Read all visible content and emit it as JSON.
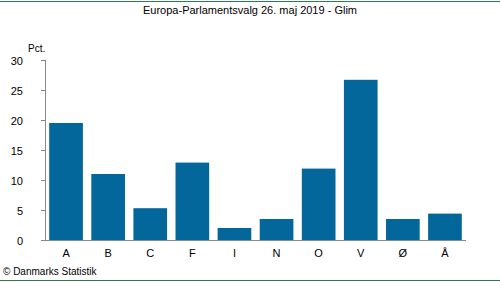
{
  "chart_data": {
    "type": "bar",
    "title": "Europa-Parlamentsvalg 26. maj 2019 - Glim",
    "y_label": "Pct.",
    "source": "© Danmarks Statistik",
    "categories": [
      "A",
      "B",
      "C",
      "F",
      "I",
      "N",
      "O",
      "V",
      "Ø",
      "Å"
    ],
    "values": [
      19.5,
      11.0,
      5.3,
      12.9,
      2.0,
      3.5,
      11.9,
      26.7,
      3.5,
      4.4
    ],
    "color": "#03679b",
    "ylim": [
      0,
      30
    ],
    "yticks": [
      0,
      5,
      10,
      15,
      20,
      25,
      30
    ],
    "grid": false
  }
}
